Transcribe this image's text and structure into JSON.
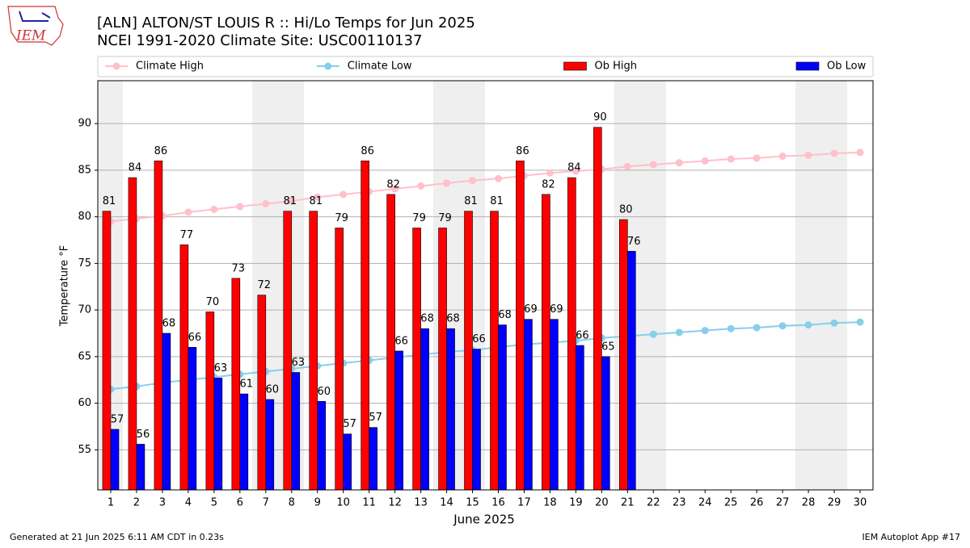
{
  "logo": "IEM",
  "chart_data": {
    "type": "bar",
    "title": "[ALN] ALTON/ST LOUIS R :: Hi/Lo Temps for Jun 2025",
    "subtitle": "NCEI 1991-2020 Climate Site: USC00110137",
    "xlabel": "June 2025",
    "ylabel": "Temperature °F",
    "x": [
      1,
      2,
      3,
      4,
      5,
      6,
      7,
      8,
      9,
      10,
      11,
      12,
      13,
      14,
      15,
      16,
      17,
      18,
      19,
      20,
      21,
      22,
      23,
      24,
      25,
      26,
      27,
      28,
      29,
      30
    ],
    "xlim": [
      0.5,
      30.5
    ],
    "xticks": [
      1,
      2,
      3,
      4,
      5,
      6,
      7,
      8,
      9,
      10,
      11,
      12,
      13,
      14,
      15,
      16,
      17,
      18,
      19,
      20,
      21,
      22,
      23,
      24,
      25,
      26,
      27,
      28,
      29,
      30
    ],
    "ylim": [
      50.7,
      94.6
    ],
    "yticks": [
      55,
      60,
      65,
      70,
      75,
      80,
      85,
      90
    ],
    "grid": true,
    "legend": "top",
    "series": [
      {
        "name": "Climate High",
        "kind": "line",
        "color": "#ffc0cb",
        "values": [
          79.5,
          79.8,
          80.1,
          80.5,
          80.8,
          81.1,
          81.4,
          81.7,
          82.1,
          82.4,
          82.7,
          83.0,
          83.3,
          83.6,
          83.9,
          84.1,
          84.4,
          84.7,
          84.9,
          85.1,
          85.4,
          85.6,
          85.8,
          86.0,
          86.2,
          86.3,
          86.5,
          86.6,
          86.8,
          86.9
        ]
      },
      {
        "name": "Climate Low",
        "kind": "line",
        "color": "#87ceeb",
        "values": [
          61.5,
          61.8,
          62.2,
          62.5,
          62.8,
          63.1,
          63.4,
          63.7,
          64.0,
          64.3,
          64.6,
          64.9,
          65.2,
          65.5,
          65.7,
          66.0,
          66.3,
          66.5,
          66.7,
          67.0,
          67.2,
          67.4,
          67.6,
          67.8,
          68.0,
          68.1,
          68.3,
          68.4,
          68.6,
          68.7
        ]
      },
      {
        "name": "Ob High",
        "kind": "bar",
        "color": "#ff0000",
        "values": [
          80.6,
          84.2,
          86.0,
          77.0,
          69.8,
          73.4,
          71.6,
          80.6,
          80.6,
          78.8,
          86.0,
          82.4,
          78.8,
          78.8,
          80.6,
          80.6,
          86.0,
          82.4,
          84.2,
          89.6,
          79.7,
          null,
          null,
          null,
          null,
          null,
          null,
          null,
          null,
          null
        ],
        "value_labels": [
          "81",
          "84",
          "86",
          "77",
          "70",
          "73",
          "72",
          "81",
          "81",
          "79",
          "86",
          "82",
          "79",
          "79",
          "81",
          "81",
          "86",
          "82",
          "84",
          "90",
          "80",
          null,
          null,
          null,
          null,
          null,
          null,
          null,
          null,
          null
        ]
      },
      {
        "name": "Ob Low",
        "kind": "bar",
        "color": "#0000ff",
        "values": [
          57.2,
          55.6,
          67.5,
          66.0,
          62.7,
          61.0,
          60.4,
          63.3,
          60.2,
          56.7,
          57.4,
          65.6,
          68.0,
          68.0,
          65.8,
          68.4,
          69.0,
          69.0,
          66.2,
          65.0,
          76.3,
          null,
          null,
          null,
          null,
          null,
          null,
          null,
          null,
          null
        ],
        "value_labels": [
          "57",
          "56",
          "68",
          "66",
          "63",
          "61",
          "60",
          "63",
          "60",
          "57",
          "57",
          "66",
          "68",
          "68",
          "66",
          "68",
          "69",
          "69",
          "66",
          "65",
          "76",
          null,
          null,
          null,
          null,
          null,
          null,
          null,
          null,
          null
        ]
      }
    ],
    "footer_left": "Generated at 21 Jun 2025 6:11 AM CDT in 0.23s",
    "footer_right": "IEM Autoplot App #17"
  }
}
